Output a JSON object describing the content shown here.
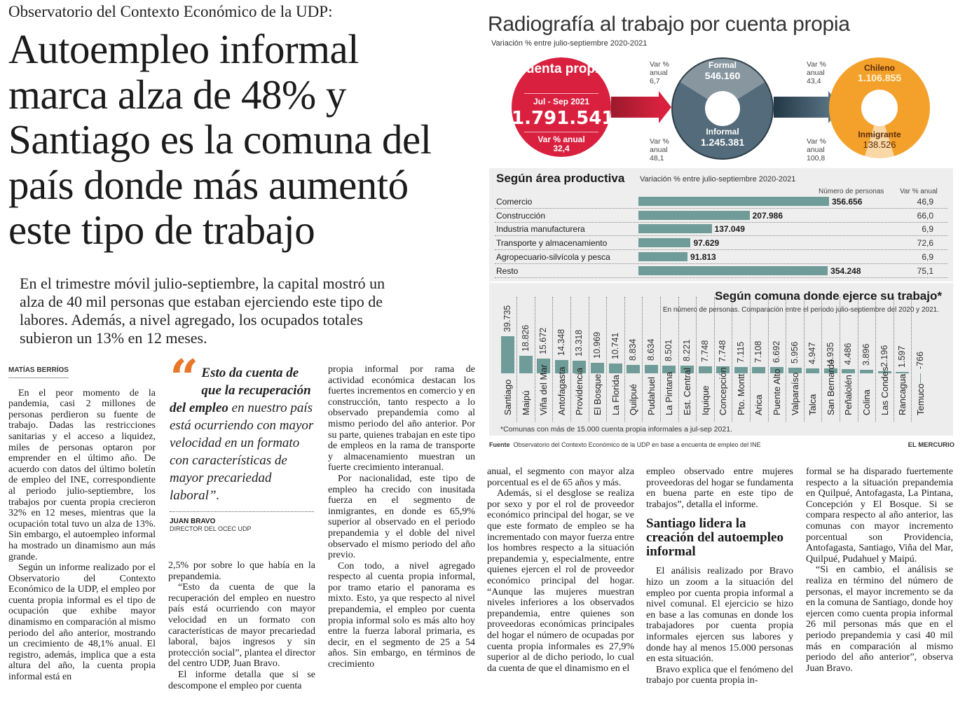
{
  "article": {
    "kicker": "Observatorio del Contexto Económico de la UDP:",
    "headline_lines": [
      "Autoempleo informal",
      "marca alza de 48% y",
      "Santiago es la comuna del",
      "país donde más aumentó",
      "este tipo de trabajo"
    ],
    "deck_lines": [
      "En el trimestre móvil julio-septiembre, la capital mostró un",
      "alza de 40 mil personas que estaban ejerciendo este tipo de",
      "labores. Además, a nivel agregado, los ocupados totales",
      "subieron un 13% en 12 meses."
    ],
    "byline": "MATÍAS BERRÍOS",
    "quote": {
      "bold": "Esto da cuenta de que la recuperación del empleo",
      "rest": " en nuestro país está ocurriendo con mayor velocidad en un formato con características de mayor precariedad laboral”.",
      "name": "JUAN BRAVO",
      "role": "DIRECTOR DEL OCEC UDP"
    },
    "col1": [
      "En el peor momento de la pandemia, casi 2 millones de personas perdieron su fuente de trabajo. Dadas las restricciones sanitarias y el acceso a liquidez, miles de personas optaron por emprender en el último año. De acuerdo con datos del último boletín de empleo del INE, correspondiente al periodo julio-septiembre, los trabajos por cuenta propia crecieron 32% en 12 meses, mientras que la ocupación total tuvo un alza de 13%. Sin embargo, el autoempleo informal ha mostrado un dinamismo aun más grande.",
      "Según un informe realizado por el Observatorio del Contexto Económico de la UDP, el empleo por cuenta propia informal es el tipo de ocupación que exhibe mayor dinamismo en comparación al mismo periodo del año anterior, mostrando un crecimiento de 48,1% anual. El registro, además, implica que a esta altura del año, la cuenta propia informal está en"
    ],
    "col2": [
      "2,5% por sobre lo que había en la prepandemia.",
      "“Esto da cuenta de que la recuperación del empleo en nuestro país está ocurriendo con mayor velocidad en un formato con características de mayor precariedad laboral, bajos ingresos y sin protección social”, plantea el director del centro UDP, Juan Bravo.",
      "El informe detalla que si se descompone el empleo por cuenta"
    ],
    "col3": [
      "propia informal por rama de actividad económica destacan los fuertes incrementos en comercio y en construcción, tanto respecto a lo observado prepandemia como al mismo periodo del año anterior. Por su parte, quienes trabajan en este tipo de empleos en la rama de transporte y almacenamiento muestran un fuerte crecimiento interanual.",
      "Por nacionalidad, este tipo de empleo ha crecido con inusitada fuerza en el segmento de inmigrantes, en donde es 65,9% superior al observado en el periodo prepandemia y el doble del nivel observado el mismo periodo del año previo.",
      "Con todo, a nivel agregado respecto al cuenta propia informal, por tramo etario el panorama es mixto. Esto, ya que respecto al nivel prepandemia, el empleo por cuenta propia informal solo es más alto hoy entre la fuerza laboral primaria, es decir, en el segmento de 25 a 54 años. Sin embargo, en términos de crecimiento"
    ],
    "col4": [
      "anual, el segmento con mayor alza porcentual es el de 65 años y más.",
      "Además, si el desglose se realiza por sexo y por el rol de proveedor económico principal del hogar, se ve que este formato de empleo se ha incrementado con mayor fuerza entre los hombres respecto a la situación prepandemia y, especialmente, entre quienes ejercen el rol de proveedor económico principal del hogar. “Aunque las mujeres muestran niveles inferiores a los observados prepandemia, entre quienes son proveedoras económicas principales del hogar el número de ocupadas por cuenta propia informales es 27,9% superior al de dicho periodo, lo cual da cuenta de que el dinamismo en el"
    ],
    "col5_a": "empleo observado entre mujeres proveedoras del hogar se fundamenta en buena parte en este tipo de trabajos”, detalla el informe.",
    "subhead": "Santiago lidera la creación del autoempleo informal",
    "col5_b": [
      "El análisis realizado por Bravo hizo un zoom a la situación del empleo por cuenta propia informal a nivel comunal. El ejercicio se hizo en base a las comunas en donde los trabajadores por cuenta propia informales ejercen sus labores y donde hay al menos 15.000 personas en esta situación.",
      "Bravo explica que el fenómeno del trabajo por cuenta propia in-"
    ],
    "col6": [
      "formal se ha disparado fuertemente respecto a la situación prepandemia en Quilpué, Antofagasta, La Pintana, Concepción y El Bosque. Si se compara respecto al año anterior, las comunas con mayor incremento porcentual son Providencia, Antofagasta, Santiago, Viña del Mar, Quilpué, Pudahuel y Maipú.",
      "“Si en cambio, el análisis se realiza en término del número de personas, el mayor incremento se da en la comuna de Santiago, donde hoy ejercen como cuenta propia informal 26 mil personas más que en el periodo prepandemia y casi 40 mil más en comparación al mismo periodo del año anterior”, observa Juan Bravo."
    ]
  },
  "infographic": {
    "title": "Radiografía al trabajo por cuenta propia",
    "subtitle": "Variación % entre julio-septiembre 2020-2021",
    "total": {
      "title": "Cuenta propia",
      "period": "Jul - Sep 2021",
      "value": "1.791.541",
      "var_label": "Var % anual",
      "var": "32,4",
      "color": "#d9213f"
    },
    "formality": {
      "formal": {
        "label": "Formal",
        "value": "546.160",
        "var_label": "Var % anual",
        "var": "6,7"
      },
      "informal": {
        "label": "Informal",
        "value": "1.245.381",
        "var_label": "Var % anual",
        "var": "48,1"
      }
    },
    "nationality": {
      "chileno": {
        "label": "Chileno",
        "value": "1.106.855",
        "var_label": "Var % anual",
        "var": "43,4"
      },
      "inmigrante": {
        "label": "Inmigrante",
        "value": "138.526",
        "var_label": "Var % anual",
        "var": "100,8"
      }
    },
    "source_label": "Fuente",
    "source": "Observatorio del Contexto Económico de la UDP en base a encuenta de empleo del INE",
    "brand": "EL MERCURIO"
  },
  "chart_data": [
    {
      "type": "bar",
      "orientation": "horizontal",
      "title": "Según área productiva",
      "subtitle": "Variación % entre julio-septiembre 2020-2021",
      "value_header": "Número de personas",
      "pct_header": "Var % anual",
      "categories": [
        "Comercio",
        "Construcción",
        "Industria manufacturera",
        "Transporte y almacenamiento",
        "Agropecuario-silvícola y pesca",
        "Resto"
      ],
      "values": [
        356656,
        207986,
        137049,
        97629,
        91813,
        354248
      ],
      "value_labels": [
        "356.656",
        "207.986",
        "137.049",
        "97.629",
        "91.813",
        "354.248"
      ],
      "pct": [
        "46,9",
        "66,0",
        "6,9",
        "72,6",
        "6,9",
        "75,1"
      ],
      "color": "#6f9c98"
    },
    {
      "type": "bar",
      "orientation": "vertical",
      "title": "Según comuna donde ejerce su trabajo*",
      "subtitle": "En número de personas. Comparación entre el periodo julio-septiembre del 2020 y 2021.",
      "footnote": "*Comunas con más de 15.000 cuenta propia informales a jul-sep 2021.",
      "categories": [
        "Santiago",
        "Maipú",
        "Viña del Mar",
        "Antofagasta",
        "Providencia",
        "El Bosque",
        "La Florida",
        "Quilpué",
        "Pudahuel",
        "La Pintana",
        "Est. Central",
        "Iquique",
        "Concepción",
        "Pto. Montt",
        "Arica",
        "Puente Alto",
        "Valparaíso",
        "Talca",
        "San Bernardo",
        "Peñalolén",
        "Colina",
        "Las Condes",
        "Rancagua",
        "Temuco"
      ],
      "values": [
        39735,
        18826,
        15672,
        14348,
        13318,
        10969,
        10741,
        8834,
        8634,
        8501,
        8221,
        7748,
        7748,
        7115,
        7108,
        6692,
        5956,
        4947,
        4935,
        4486,
        3896,
        2196,
        1597,
        -766
      ],
      "value_labels": [
        "39.735",
        "18.826",
        "15.672",
        "14.348",
        "13.318",
        "10.969",
        "10.741",
        "8.834",
        "8.634",
        "8.501",
        "8.221",
        "7.748",
        "7.748",
        "7.115",
        "7.108",
        "6.692",
        "5.956",
        "4.947",
        "4.935",
        "4.486",
        "3.896",
        "2.196",
        "1.597",
        "-766"
      ],
      "color": "#6f9c98"
    }
  ]
}
